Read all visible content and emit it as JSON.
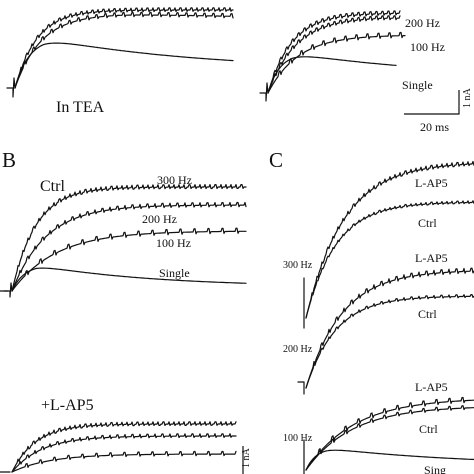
{
  "figure": {
    "panel_labels": [
      "B",
      "C"
    ],
    "scale_bar": {
      "current": "1 nA",
      "time": "20 ms"
    },
    "colors": {
      "trace": "#111111",
      "background": "#ffffff"
    }
  },
  "chart_data": [
    {
      "type": "line",
      "panel": "A-left",
      "annotation": "In TEA",
      "series": [
        {
          "peak": 3.5,
          "ripple": true,
          "steady_fraction": 1.0
        },
        {
          "peak": 3.5,
          "ripple": true,
          "steady_fraction": 0.96
        },
        {
          "name": "Single",
          "peak": 2.4,
          "ripple": false,
          "steady_fraction": 0.42
        }
      ]
    },
    {
      "type": "line",
      "panel": "A-right",
      "series": [
        {
          "name": "200 Hz",
          "peak": 3.2,
          "ripple": true,
          "steady_fraction": 1.0
        },
        {
          "peak": 3.1,
          "ripple": true,
          "steady_fraction": 0.95
        },
        {
          "name": "100 Hz",
          "peak": 2.7,
          "ripple": true,
          "steady_fraction": 1.0
        },
        {
          "name": "Single",
          "peak": 1.9,
          "ripple": false,
          "steady_fraction": 0.35
        }
      ],
      "scale_bar": {
        "current": "1 nA",
        "time": "20 ms"
      }
    },
    {
      "type": "line",
      "panel": "B",
      "conditions": [
        {
          "label": "Ctrl",
          "series": [
            {
              "name": "300 Hz",
              "peak": 3.5,
              "ripple": true
            },
            {
              "name": "200 Hz",
              "peak": 2.9,
              "ripple": true
            },
            {
              "name": "100 Hz",
              "peak": 1.9,
              "ripple": true
            },
            {
              "name": "Single",
              "peak": 0.8,
              "ripple": false
            }
          ]
        },
        {
          "label": "+L-AP5",
          "series": [
            {
              "peak": 1.6,
              "ripple": true
            },
            {
              "peak": 1.2,
              "ripple": true
            },
            {
              "peak": 0.6,
              "ripple": true
            }
          ],
          "scale_bar": {
            "current": "1 nA"
          }
        }
      ]
    },
    {
      "type": "line",
      "panel": "C",
      "groups": [
        {
          "label": "300 Hz",
          "series": [
            {
              "name": "L-AP5",
              "peak": 3.4,
              "ripple": true
            },
            {
              "name": "Ctrl",
              "peak": 2.6,
              "ripple": true
            }
          ]
        },
        {
          "label": "200 Hz",
          "series": [
            {
              "name": "L-AP5",
              "peak": 2.7,
              "ripple": true
            },
            {
              "name": "Ctrl",
              "peak": 2.3,
              "ripple": true
            }
          ]
        },
        {
          "label": "100 Hz",
          "series": [
            {
              "name": "L-AP5",
              "peak": 1.6,
              "ripple": true
            },
            {
              "name": "Ctrl",
              "peak": 1.5,
              "ripple": true
            },
            {
              "name": "Sing",
              "peak": 1.2,
              "ripple": false
            }
          ]
        }
      ]
    }
  ]
}
